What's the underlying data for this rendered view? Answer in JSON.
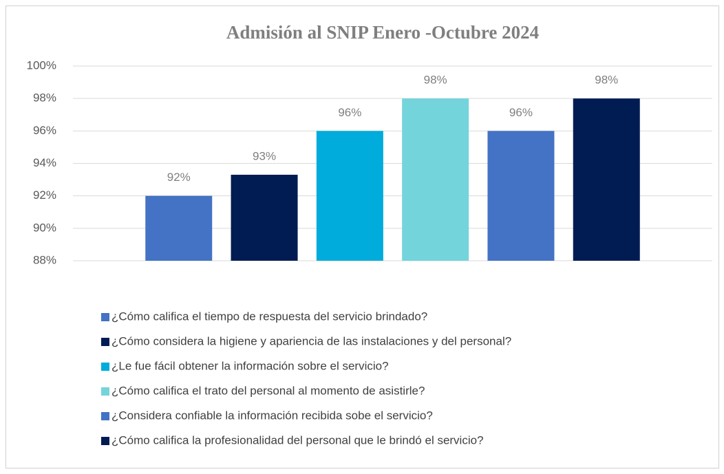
{
  "chart_data": {
    "type": "bar",
    "title": "Admisión al  SNIP Enero -Octubre 2024",
    "series": [
      {
        "name": "¿Cómo califica el tiempo de respuesta del servicio brindado?",
        "color": "#4472c4",
        "values": [
          92
        ],
        "value_labels": [
          "92%"
        ]
      },
      {
        "name": "¿Cómo considera la higiene y apariencia de las instalaciones y del personal?",
        "color": "#001c52",
        "values": [
          93.3
        ],
        "value_labels": [
          "93%"
        ]
      },
      {
        "name": "¿Le fue fácil obtener la información sobre el servicio?",
        "color": "#00acdb",
        "values": [
          96
        ],
        "value_labels": [
          "96%"
        ]
      },
      {
        "name": "¿Cómo califica el trato del personal al momento de asistirle?",
        "color": "#74d4dc",
        "values": [
          98
        ],
        "value_labels": [
          "98%"
        ]
      },
      {
        "name": "¿Considera confiable la información recibida sobe el servicio?",
        "color": "#4472c4",
        "values": [
          96
        ],
        "value_labels": [
          "96%"
        ]
      },
      {
        "name": "¿Cómo califica la profesionalidad del personal que le brindó el servicio?",
        "color": "#001c52",
        "values": [
          98
        ],
        "value_labels": [
          "98%"
        ]
      }
    ],
    "ylim": [
      88,
      100
    ],
    "yticks": [
      {
        "value": 88,
        "label": "88%"
      },
      {
        "value": 90,
        "label": "90%"
      },
      {
        "value": 92,
        "label": "92%"
      },
      {
        "value": 94,
        "label": "94%"
      },
      {
        "value": 96,
        "label": "96%"
      },
      {
        "value": 98,
        "label": "98%"
      },
      {
        "value": 100,
        "label": "100%"
      }
    ],
    "grid": true,
    "legend": "bottom"
  }
}
